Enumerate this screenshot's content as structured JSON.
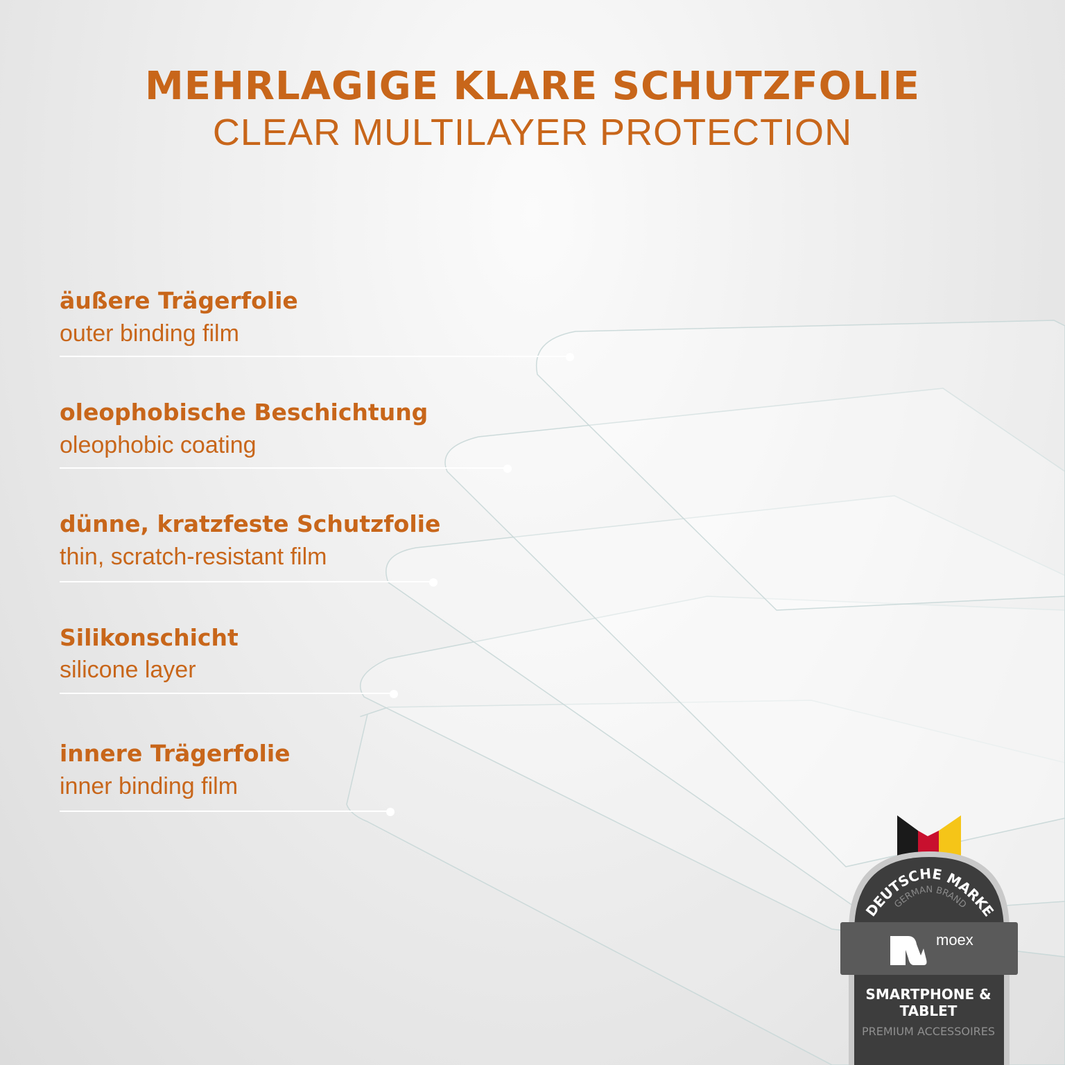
{
  "header": {
    "title_de": "MEHRLAGIGE KLARE SCHUTZFOLIE",
    "title_en": "CLEAR MULTILAYER PROTECTION"
  },
  "layers": [
    {
      "de": "äußere Trägerfolie",
      "en": "outer binding film"
    },
    {
      "de": "oleophobische Beschichtung",
      "en": "oleophobic coating"
    },
    {
      "de": "dünne, kratzfeste Schutzfolie",
      "en": "thin, scratch-resistant film"
    },
    {
      "de": "Silikonschicht",
      "en": "silicone layer"
    },
    {
      "de": "innere Trägerfolie",
      "en": "inner binding film"
    }
  ],
  "badge": {
    "arc_top": "DEUTSCHE MARKE",
    "arc_sub": "GERMAN BRAND",
    "logo": "moex",
    "line1": "SMARTPHONE &",
    "line2": "TABLET",
    "line3": "PREMIUM ACCESSOIRES",
    "flag_colors": [
      "#1a1a1a",
      "#c8102e",
      "#f5c518"
    ]
  },
  "colors": {
    "accent": "#c8661a",
    "badge_dark": "#3d3d3d",
    "badge_band": "#5a5a5a"
  }
}
